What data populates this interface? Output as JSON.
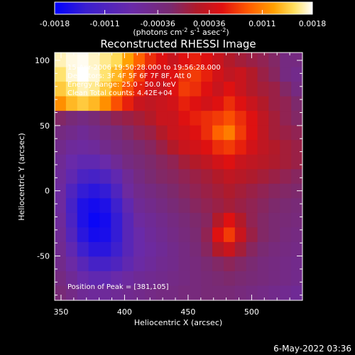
{
  "chart_data": {
    "type": "heatmap",
    "title": "Reconstructed RHESSI Image",
    "xlabel": "Heliocentric X (arcsec)",
    "ylabel": "Heliocentric Y (arcsec)",
    "xlim": [
      345,
      540
    ],
    "ylim": [
      -84,
      106
    ],
    "x_ticks": [
      "350",
      "400",
      "450",
      "500"
    ],
    "y_ticks": [
      "100",
      "50",
      "0",
      "-50"
    ],
    "colorbar": {
      "ticks": [
        "-0.0018",
        "-0.0011",
        "-0.00036",
        "0.00036",
        "0.0011",
        "0.0018"
      ],
      "range": [
        -0.0018,
        0.0018
      ],
      "label_parts": [
        "(photons cm",
        "-2",
        " s",
        "-1",
        " asec",
        "-2",
        ")"
      ],
      "colormap": [
        "#0000ff",
        "#3a1fd0",
        "#6a2aa8",
        "#7a2a70",
        "#b01a2a",
        "#e01010",
        "#ff5a00",
        "#ffa000",
        "#ffe060",
        "#ffffff"
      ]
    },
    "annotations": {
      "time_range": "15-Apr-2006 19:50:28.000 to 19:56:28.000",
      "detectors": "Detectors: 3F 4F 5F 6F 7F 8F, Att 0",
      "energy": "Energy Range: 25.0 - 50.0 keV",
      "clean": "Clean      Total counts: 4.42E+04",
      "peak": "Position of Peak = [381,105]"
    },
    "peak": [
      381,
      105
    ],
    "image_grid": [
      [
        0.95,
        0.98,
        0.99,
        0.96,
        0.92,
        0.88,
        0.78,
        0.68,
        0.6,
        0.55,
        0.5,
        0.55,
        0.58,
        0.55,
        0.5,
        0.45,
        0.42,
        0.4,
        0.38,
        0.35,
        0.3,
        0.3
      ],
      [
        0.9,
        0.97,
        1.0,
        0.97,
        0.9,
        0.82,
        0.72,
        0.62,
        0.55,
        0.52,
        0.55,
        0.6,
        0.62,
        0.58,
        0.52,
        0.48,
        0.5,
        0.45,
        0.4,
        0.36,
        0.3,
        0.28
      ],
      [
        0.85,
        0.9,
        0.95,
        0.92,
        0.85,
        0.75,
        0.65,
        0.58,
        0.52,
        0.5,
        0.55,
        0.62,
        0.6,
        0.55,
        0.5,
        0.55,
        0.5,
        0.45,
        0.42,
        0.4,
        0.35,
        0.3
      ],
      [
        0.75,
        0.82,
        0.85,
        0.82,
        0.75,
        0.65,
        0.58,
        0.5,
        0.48,
        0.5,
        0.52,
        0.58,
        0.55,
        0.52,
        0.55,
        0.6,
        0.55,
        0.5,
        0.45,
        0.4,
        0.38,
        0.34
      ],
      [
        0.35,
        0.32,
        0.3,
        0.32,
        0.35,
        0.38,
        0.4,
        0.42,
        0.45,
        0.5,
        0.5,
        0.55,
        0.58,
        0.6,
        0.62,
        0.65,
        0.6,
        0.55,
        0.48,
        0.42,
        0.38,
        0.35
      ],
      [
        0.3,
        0.28,
        0.26,
        0.28,
        0.3,
        0.32,
        0.35,
        0.38,
        0.4,
        0.45,
        0.5,
        0.52,
        0.55,
        0.6,
        0.68,
        0.72,
        0.62,
        0.55,
        0.48,
        0.42,
        0.4,
        0.38
      ],
      [
        0.28,
        0.25,
        0.24,
        0.25,
        0.28,
        0.3,
        0.32,
        0.34,
        0.36,
        0.4,
        0.45,
        0.5,
        0.52,
        0.55,
        0.6,
        0.62,
        0.58,
        0.52,
        0.48,
        0.45,
        0.42,
        0.4
      ],
      [
        0.26,
        0.22,
        0.2,
        0.2,
        0.22,
        0.26,
        0.3,
        0.32,
        0.34,
        0.36,
        0.38,
        0.42,
        0.45,
        0.48,
        0.52,
        0.55,
        0.5,
        0.48,
        0.46,
        0.44,
        0.42,
        0.4
      ],
      [
        0.25,
        0.2,
        0.15,
        0.14,
        0.16,
        0.2,
        0.26,
        0.3,
        0.33,
        0.35,
        0.36,
        0.38,
        0.4,
        0.42,
        0.45,
        0.48,
        0.46,
        0.44,
        0.42,
        0.4,
        0.38,
        0.36
      ],
      [
        0.24,
        0.16,
        0.1,
        0.08,
        0.1,
        0.16,
        0.24,
        0.28,
        0.3,
        0.32,
        0.34,
        0.36,
        0.38,
        0.4,
        0.42,
        0.44,
        0.42,
        0.4,
        0.38,
        0.36,
        0.35,
        0.34
      ],
      [
        0.24,
        0.14,
        0.06,
        0.04,
        0.06,
        0.12,
        0.2,
        0.26,
        0.28,
        0.3,
        0.32,
        0.34,
        0.36,
        0.38,
        0.4,
        0.42,
        0.4,
        0.38,
        0.36,
        0.34,
        0.33,
        0.32
      ],
      [
        0.25,
        0.15,
        0.06,
        0.02,
        0.04,
        0.1,
        0.18,
        0.24,
        0.26,
        0.28,
        0.3,
        0.32,
        0.34,
        0.36,
        0.45,
        0.55,
        0.45,
        0.38,
        0.35,
        0.33,
        0.32,
        0.31
      ],
      [
        0.26,
        0.17,
        0.08,
        0.04,
        0.05,
        0.1,
        0.18,
        0.22,
        0.25,
        0.27,
        0.29,
        0.31,
        0.33,
        0.38,
        0.55,
        0.62,
        0.5,
        0.4,
        0.35,
        0.33,
        0.31,
        0.3
      ],
      [
        0.27,
        0.2,
        0.12,
        0.08,
        0.08,
        0.12,
        0.18,
        0.22,
        0.24,
        0.26,
        0.28,
        0.3,
        0.32,
        0.36,
        0.45,
        0.5,
        0.42,
        0.36,
        0.33,
        0.31,
        0.3,
        0.29
      ],
      [
        0.28,
        0.23,
        0.18,
        0.14,
        0.14,
        0.16,
        0.2,
        0.23,
        0.25,
        0.27,
        0.28,
        0.3,
        0.31,
        0.33,
        0.35,
        0.37,
        0.35,
        0.33,
        0.31,
        0.3,
        0.29,
        0.28
      ],
      [
        0.3,
        0.26,
        0.22,
        0.2,
        0.2,
        0.22,
        0.24,
        0.26,
        0.27,
        0.28,
        0.29,
        0.3,
        0.31,
        0.32,
        0.33,
        0.34,
        0.33,
        0.32,
        0.31,
        0.3,
        0.29,
        0.28
      ],
      [
        0.32,
        0.29,
        0.26,
        0.25,
        0.25,
        0.26,
        0.27,
        0.28,
        0.29,
        0.3,
        0.3,
        0.31,
        0.31,
        0.32,
        0.32,
        0.32,
        0.31,
        0.3,
        0.29,
        0.28,
        0.27,
        0.26
      ]
    ]
  },
  "footer": {
    "date": "6-May-2022 03:36"
  }
}
